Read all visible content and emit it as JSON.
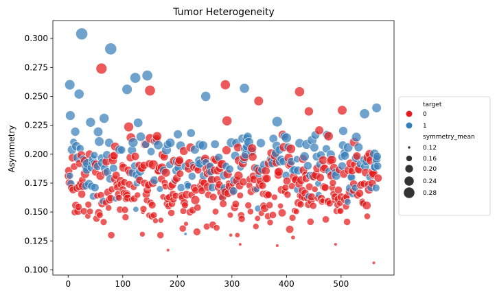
{
  "chart_data": {
    "type": "scatter",
    "title": "Tumor Heterogeneity",
    "xlabel": "",
    "ylabel": "Asymmetry",
    "xlim": [
      -28,
      597
    ],
    "ylim": [
      0.0955,
      0.3155
    ],
    "xticks": [
      0,
      100,
      200,
      300,
      400,
      500
    ],
    "xtick_labels": [
      "0",
      "100",
      "200",
      "300",
      "400",
      "500"
    ],
    "yticks": [
      0.1,
      0.125,
      0.15,
      0.175,
      0.2,
      0.225,
      0.25,
      0.275,
      0.3
    ],
    "ytick_labels": [
      "0.100",
      "0.125",
      "0.150",
      "0.175",
      "0.200",
      "0.225",
      "0.250",
      "0.275",
      "0.300"
    ],
    "grid": false,
    "legend_position": "outside-right",
    "hue": {
      "title": "target",
      "entries": [
        {
          "label": "0",
          "color": "#e41a1c"
        },
        {
          "label": "1",
          "color": "#377eb8"
        }
      ]
    },
    "size": {
      "title": "symmetry_mean",
      "entries": [
        {
          "label": "0.12",
          "value": 0.12
        },
        {
          "label": "0.16",
          "value": 0.16
        },
        {
          "label": "0.20",
          "value": 0.2
        },
        {
          "label": "0.24",
          "value": 0.24
        },
        {
          "label": "0.28",
          "value": 0.28
        }
      ]
    },
    "notable_points": [
      {
        "x": 25,
        "y": 0.304,
        "target": 1,
        "symmetry_mean": 0.29
      },
      {
        "x": 78,
        "y": 0.291,
        "target": 1,
        "symmetry_mean": 0.29
      },
      {
        "x": 61,
        "y": 0.274,
        "target": 0,
        "symmetry_mean": 0.26
      },
      {
        "x": 3,
        "y": 0.26,
        "target": 1,
        "symmetry_mean": 0.24
      },
      {
        "x": 123,
        "y": 0.266,
        "target": 1,
        "symmetry_mean": 0.25
      },
      {
        "x": 145,
        "y": 0.268,
        "target": 1,
        "symmetry_mean": 0.25
      },
      {
        "x": 108,
        "y": 0.256,
        "target": 1,
        "symmetry_mean": 0.24
      },
      {
        "x": 150,
        "y": 0.255,
        "target": 0,
        "symmetry_mean": 0.25
      },
      {
        "x": 288,
        "y": 0.26,
        "target": 0,
        "symmetry_mean": 0.23
      },
      {
        "x": 323,
        "y": 0.257,
        "target": 1,
        "symmetry_mean": 0.23
      },
      {
        "x": 424,
        "y": 0.254,
        "target": 0,
        "symmetry_mean": 0.23
      },
      {
        "x": 349,
        "y": 0.246,
        "target": 0,
        "symmetry_mean": 0.22
      },
      {
        "x": 252,
        "y": 0.25,
        "target": 1,
        "symmetry_mean": 0.23
      },
      {
        "x": 20,
        "y": 0.252,
        "target": 1,
        "symmetry_mean": 0.23
      },
      {
        "x": 502,
        "y": 0.238,
        "target": 0,
        "symmetry_mean": 0.22
      },
      {
        "x": 565,
        "y": 0.24,
        "target": 1,
        "symmetry_mean": 0.22
      },
      {
        "x": 441,
        "y": 0.237,
        "target": 0,
        "symmetry_mean": 0.21
      },
      {
        "x": 560,
        "y": 0.106,
        "target": 0,
        "symmetry_mean": 0.12
      },
      {
        "x": 183,
        "y": 0.117,
        "target": 0,
        "symmetry_mean": 0.12
      },
      {
        "x": 215,
        "y": 0.131,
        "target": 1,
        "symmetry_mean": 0.12
      },
      {
        "x": 490,
        "y": 0.122,
        "target": 0,
        "symmetry_mean": 0.12
      },
      {
        "x": 315,
        "y": 0.122,
        "target": 0,
        "symmetry_mean": 0.12
      },
      {
        "x": 383,
        "y": 0.121,
        "target": 0,
        "symmetry_mean": 0.12
      },
      {
        "x": 412,
        "y": 0.128,
        "target": 0,
        "symmetry_mean": 0.13
      }
    ],
    "point_count": 569
  }
}
